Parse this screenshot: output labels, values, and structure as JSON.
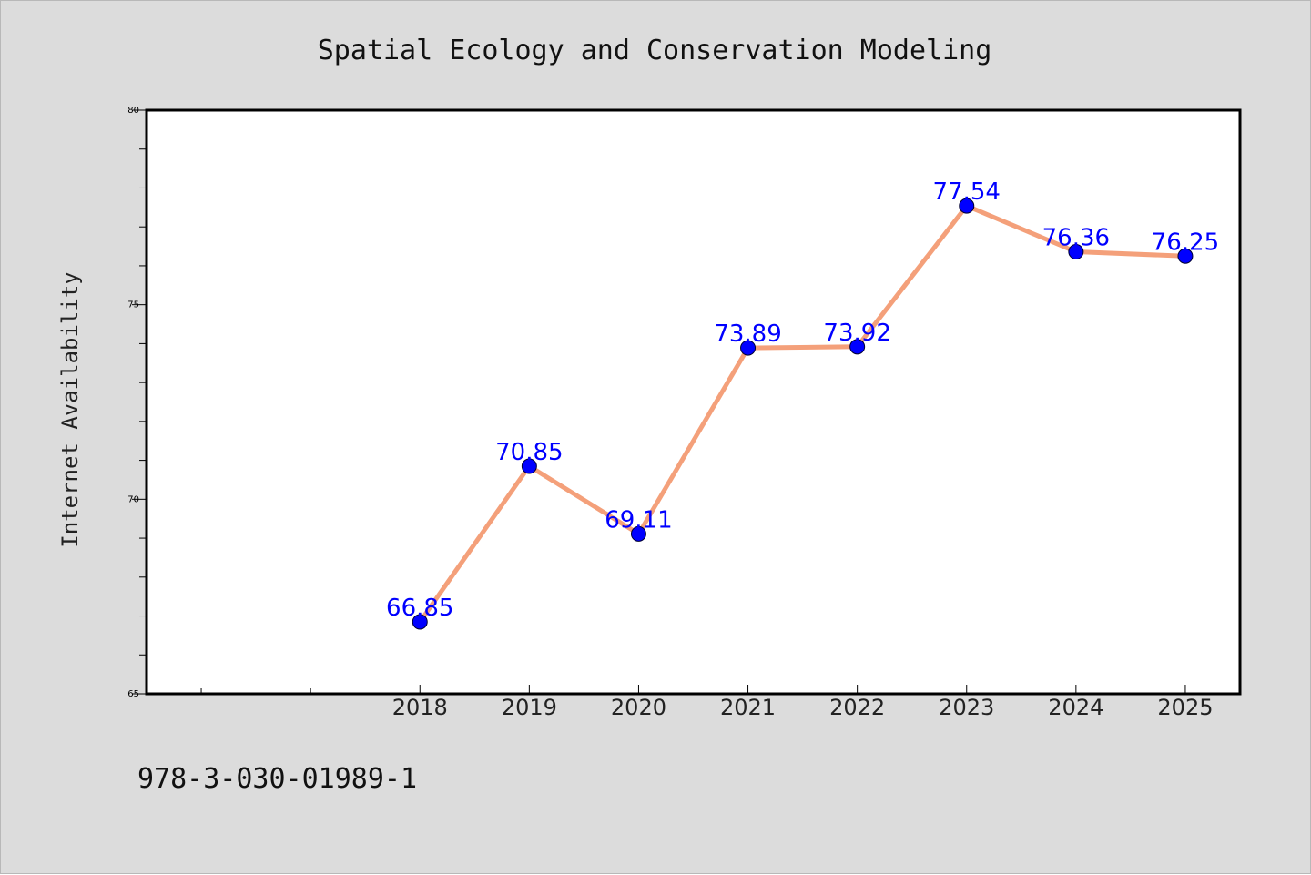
{
  "chart_data": {
    "type": "line",
    "title": "Spatial Ecology and Conservation Modeling",
    "xlabel": "",
    "ylabel": "Internet Availability",
    "x": [
      "2018",
      "2019",
      "2020",
      "2021",
      "2022",
      "2023",
      "2024",
      "2025"
    ],
    "series": [
      {
        "values": [
          66.85,
          70.85,
          69.11,
          73.89,
          73.92,
          77.54,
          76.36,
          76.25
        ],
        "labels": [
          "66.85",
          "70.85",
          "69.11",
          "73.89",
          "73.92",
          "77.54",
          "76.36",
          "76.25"
        ],
        "line_color": "#f4a07a",
        "marker_color": "#0000ff"
      }
    ],
    "xlim": [
      2015.5,
      2025.5
    ],
    "ylim": [
      65,
      80
    ],
    "y_major_ticks": [
      65,
      70,
      75,
      80
    ],
    "y_minor_step": 1,
    "x_minor_ticks": [
      2016,
      2017
    ],
    "grid": false,
    "legend": "none",
    "footer": "978-3-030-01989-1"
  },
  "colors": {
    "figure_background": "#dcdcdc",
    "plot_background": "#ffffff",
    "axes_frame": "#000000"
  }
}
